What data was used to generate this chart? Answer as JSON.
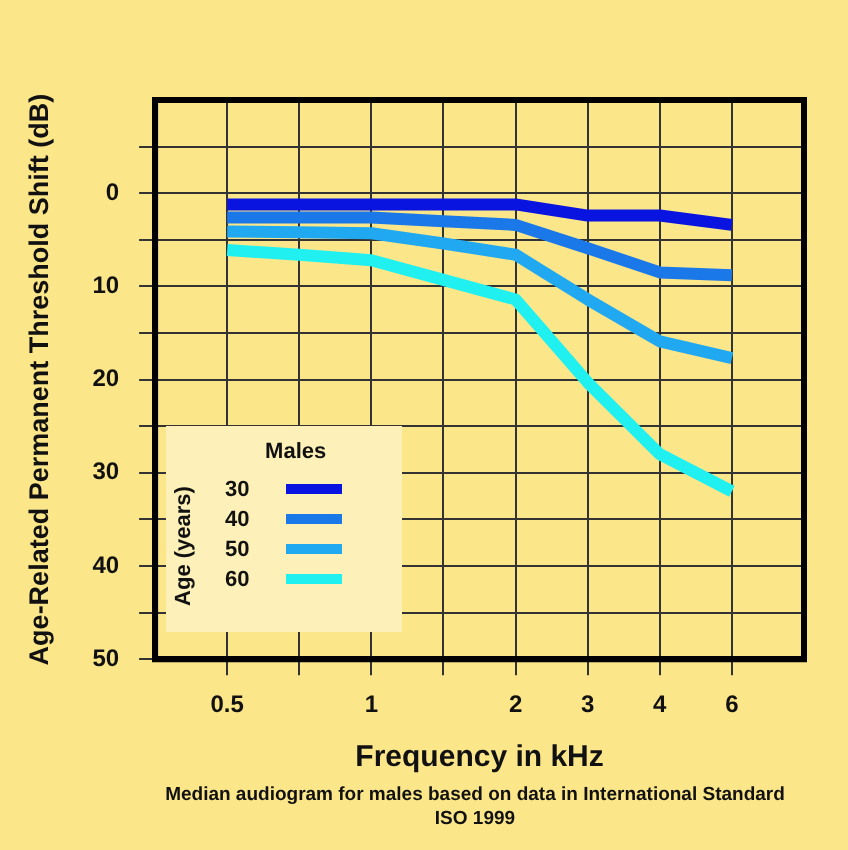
{
  "chart_data": {
    "type": "line",
    "xlabel": "Frequency in kHz",
    "ylabel": "Age-Related Permanent Threshold Shift (dB)",
    "legend_title": "Males",
    "categories": [
      "0.5",
      null,
      "1",
      null,
      "2",
      "3",
      "4",
      "6"
    ],
    "series": [
      {
        "name": "30",
        "color": "#0a14e0",
        "values": [
          1.2,
          1.2,
          1.2,
          1.2,
          1.2,
          2.4,
          2.4,
          3.4
        ]
      },
      {
        "name": "40",
        "color": "#1a78e8",
        "values": [
          2.6,
          2.6,
          2.6,
          3.0,
          3.4,
          5.9,
          8.5,
          8.8
        ]
      },
      {
        "name": "50",
        "color": "#20a8f0",
        "values": [
          4.1,
          4.2,
          4.3,
          5.4,
          6.6,
          11.4,
          15.9,
          17.7
        ]
      },
      {
        "name": "60",
        "color": "#20f0f0",
        "values": [
          6.1,
          6.6,
          7.2,
          9.3,
          11.4,
          20.3,
          28,
          32
        ]
      }
    ],
    "ylim": [
      50,
      -10
    ],
    "yticks": [
      {
        "value": -5,
        "label": null
      },
      0,
      {
        "value": 5,
        "label": null
      },
      10,
      {
        "value": 15,
        "label": null
      },
      20,
      {
        "value": 25,
        "label": null
      },
      30,
      {
        "value": 35,
        "label": null
      },
      40,
      {
        "value": 45,
        "label": null
      },
      50
    ],
    "annotations": [
      "Age (years)",
      "Median audiogram for males based on data in International Standard ISO 1999"
    ],
    "grid": true,
    "legend": "bottom left",
    "marker": "none",
    "line_style": "solid"
  }
}
